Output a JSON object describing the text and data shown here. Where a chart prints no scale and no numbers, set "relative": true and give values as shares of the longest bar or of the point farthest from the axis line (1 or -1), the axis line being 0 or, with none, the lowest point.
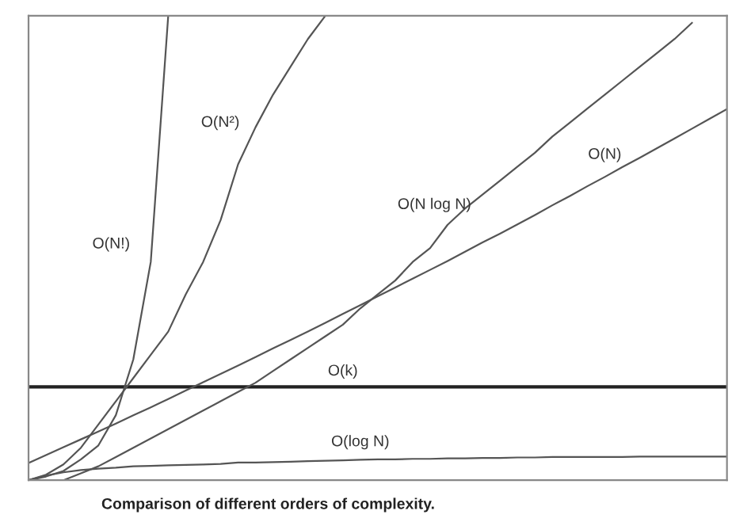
{
  "chart_data": {
    "type": "line",
    "relative": true,
    "legend": false,
    "categories": [
      null,
      null,
      null,
      null,
      null,
      null,
      null,
      null,
      null,
      null,
      null,
      null,
      null,
      null,
      null,
      null,
      null,
      null,
      null,
      null,
      null,
      null,
      null,
      null,
      null,
      null,
      null,
      null,
      null,
      null,
      null,
      null,
      null,
      null,
      null,
      null,
      null,
      null,
      null,
      null,
      null
    ],
    "series": [
      {
        "name": "O(k)",
        "color": "#222222",
        "values": [
          0.201,
          0.201,
          0.201,
          0.201,
          0.201,
          0.201,
          0.201,
          0.201,
          0.201,
          0.201,
          0.201,
          0.201,
          0.201,
          0.201,
          0.201,
          0.201,
          0.201,
          0.201,
          0.201,
          0.201,
          0.201,
          0.201,
          0.201,
          0.201,
          0.201,
          0.201,
          0.201,
          0.201,
          0.201,
          0.201,
          0.201,
          0.201,
          0.201,
          0.201,
          0.201,
          0.201,
          0.201,
          0.201,
          0.201,
          0.201,
          0.201
        ]
      },
      {
        "name": "O(log N)",
        "color": "#555555",
        "values": [
          0,
          0.01,
          0.017,
          0.022,
          0.025,
          0.027,
          0.03,
          0.031,
          0.032,
          0.033,
          0.034,
          0.035,
          0.038,
          0.038,
          0.039,
          0.04,
          0.041,
          0.042,
          0.043,
          0.044,
          0.045,
          0.045,
          0.046,
          0.046,
          0.047,
          0.047,
          0.048,
          0.048,
          0.049,
          0.049,
          0.05,
          0.05,
          0.05,
          0.05,
          0.05,
          0.051,
          0.051,
          0.051,
          0.051,
          0.051,
          0.051
        ]
      },
      {
        "name": "O(N)",
        "color": "#555555",
        "values": [
          0.037,
          0.054,
          0.071,
          0.088,
          0.105,
          0.122,
          0.14,
          0.157,
          0.175,
          0.193,
          0.211,
          0.229,
          0.247,
          0.265,
          0.284,
          0.302,
          0.32,
          0.339,
          0.358,
          0.377,
          0.396,
          0.415,
          0.434,
          0.453,
          0.472,
          0.492,
          0.512,
          0.531,
          0.551,
          0.571,
          0.592,
          0.612,
          0.633,
          0.653,
          0.674,
          0.694,
          0.715,
          0.736,
          0.757,
          0.778,
          0.799
        ]
      },
      {
        "name": "O(N log N)",
        "color": "#555555",
        "values": [
          null,
          null,
          0,
          0.015,
          0.03,
          0.05,
          0.07,
          0.09,
          0.11,
          0.13,
          0.15,
          0.17,
          0.19,
          0.21,
          0.235,
          0.26,
          0.285,
          0.31,
          0.335,
          0.37,
          0.4,
          0.43,
          0.47,
          0.5,
          0.55,
          0.585,
          0.615,
          0.645,
          0.675,
          0.705,
          0.74,
          0.77,
          0.8,
          0.83,
          0.86,
          0.89,
          0.92,
          0.95,
          0.985,
          null,
          null
        ]
      },
      {
        "name": "O(N²)",
        "color": "#555555",
        "values": [
          0,
          0.012,
          0.034,
          0.07,
          0.12,
          0.17,
          0.22,
          0.27,
          0.32,
          0.4,
          0.47,
          0.56,
          0.68,
          0.76,
          0.83,
          0.89,
          0.95,
          1.0,
          null,
          null,
          null,
          null,
          null,
          null,
          null,
          null,
          null,
          null,
          null,
          null,
          null,
          null,
          null,
          null,
          null,
          null,
          null,
          null,
          null,
          null,
          null
        ]
      },
      {
        "name": "O(N!)",
        "color": "#555555",
        "values": [
          0,
          0.008,
          0.02,
          0.045,
          0.075,
          0.14,
          0.26,
          0.47,
          1.0,
          null,
          null,
          null,
          null,
          null,
          null,
          null,
          null,
          null,
          null,
          null,
          null,
          null,
          null,
          null,
          null,
          null,
          null,
          null,
          null,
          null,
          null,
          null,
          null,
          null,
          null,
          null,
          null,
          null,
          null,
          null,
          null
        ]
      }
    ],
    "annotations": [
      "Comparison of different orders of complexity."
    ]
  }
}
